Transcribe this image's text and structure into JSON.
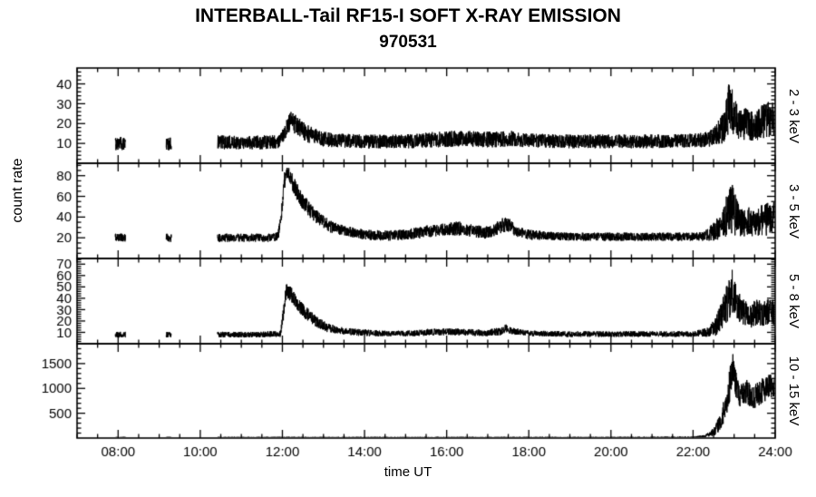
{
  "title": "INTERBALL-Tail RF15-I SOFT X-RAY EMISSION",
  "subtitle": "970531",
  "xlabel": "time UT",
  "ylabel": "count rate",
  "line_color": "#000000",
  "background_color": "#ffffff",
  "chart_data": {
    "type": "line",
    "x_range": [
      7,
      24
    ],
    "x_major_ticks": [
      8,
      10,
      12,
      14,
      16,
      18,
      20,
      22,
      24
    ],
    "x_tick_labels": [
      "08:00",
      "10:00",
      "12:00",
      "14:00",
      "16:00",
      "18:00",
      "20:00",
      "22:00",
      "24:00"
    ],
    "x_minor_step": 0.5,
    "data_segments": [
      [
        7.93,
        8.18
      ],
      [
        9.17,
        9.3
      ],
      [
        10.42,
        24.0
      ]
    ],
    "panels": [
      {
        "label": "2 - 3 keV",
        "ylim": [
          0,
          48
        ],
        "y_major_ticks": [
          10,
          20,
          30,
          40
        ],
        "y_minor_step": 2,
        "envelope": [
          [
            7.93,
            10,
            3.5
          ],
          [
            8.18,
            10,
            3.5
          ],
          [
            9.17,
            10,
            3.5
          ],
          [
            9.3,
            10,
            3.5
          ],
          [
            10.42,
            10.5,
            3.5
          ],
          [
            11.5,
            10.5,
            3.5
          ],
          [
            11.95,
            11,
            3.5
          ],
          [
            12.05,
            16,
            4
          ],
          [
            12.2,
            21,
            5
          ],
          [
            12.35,
            19,
            5
          ],
          [
            12.6,
            15,
            4.5
          ],
          [
            12.9,
            12.5,
            4
          ],
          [
            13.3,
            11.5,
            3.5
          ],
          [
            14,
            11,
            3.5
          ],
          [
            15,
            11,
            3.5
          ],
          [
            15.8,
            12,
            4
          ],
          [
            16.3,
            12.5,
            4
          ],
          [
            16.8,
            12,
            4
          ],
          [
            17.3,
            12,
            4
          ],
          [
            17.6,
            12.5,
            4
          ],
          [
            18,
            11.5,
            3.5
          ],
          [
            19,
            11,
            3.5
          ],
          [
            20,
            11,
            3.5
          ],
          [
            21,
            11,
            3.5
          ],
          [
            22,
            11.5,
            3.5
          ],
          [
            22.4,
            12,
            4
          ],
          [
            22.6,
            15,
            6
          ],
          [
            22.75,
            18,
            8
          ],
          [
            22.9,
            30,
            14
          ],
          [
            23,
            24,
            10
          ],
          [
            23.15,
            19,
            8
          ],
          [
            23.3,
            20,
            8
          ],
          [
            23.5,
            18,
            7
          ],
          [
            23.7,
            21,
            9
          ],
          [
            23.85,
            22,
            9
          ],
          [
            24,
            23,
            9
          ]
        ]
      },
      {
        "label": "3 - 5 keV",
        "ylim": [
          0,
          92
        ],
        "y_major_ticks": [
          20,
          40,
          60,
          80
        ],
        "y_minor_step": 5,
        "envelope": [
          [
            7.93,
            20,
            4
          ],
          [
            8.18,
            20,
            4
          ],
          [
            9.17,
            20,
            4
          ],
          [
            9.3,
            20,
            4
          ],
          [
            10.42,
            20,
            4
          ],
          [
            11,
            20,
            4
          ],
          [
            11.7,
            20,
            4
          ],
          [
            11.9,
            22,
            5
          ],
          [
            11.98,
            45,
            8
          ],
          [
            12.05,
            75,
            9
          ],
          [
            12.12,
            83,
            6
          ],
          [
            12.2,
            78,
            8
          ],
          [
            12.35,
            65,
            9
          ],
          [
            12.5,
            55,
            8
          ],
          [
            12.7,
            45,
            7
          ],
          [
            12.9,
            38,
            6
          ],
          [
            13.2,
            30,
            6
          ],
          [
            13.6,
            26,
            5
          ],
          [
            14,
            23,
            5
          ],
          [
            14.5,
            22,
            5
          ],
          [
            15,
            23,
            5
          ],
          [
            15.5,
            26,
            6
          ],
          [
            16,
            28,
            6
          ],
          [
            16.3,
            29,
            7
          ],
          [
            16.6,
            27,
            6
          ],
          [
            16.9,
            25,
            6
          ],
          [
            17.1,
            26,
            6
          ],
          [
            17.35,
            32,
            7
          ],
          [
            17.5,
            33,
            7
          ],
          [
            17.7,
            26,
            5
          ],
          [
            18,
            23,
            5
          ],
          [
            18.5,
            22,
            4
          ],
          [
            19,
            21,
            4
          ],
          [
            20,
            21,
            4
          ],
          [
            21,
            21,
            4
          ],
          [
            22,
            21,
            4
          ],
          [
            22.3,
            22,
            5
          ],
          [
            22.5,
            26,
            9
          ],
          [
            22.7,
            33,
            14
          ],
          [
            22.85,
            44,
            22
          ],
          [
            22.95,
            50,
            28
          ],
          [
            23.05,
            40,
            18
          ],
          [
            23.2,
            34,
            13
          ],
          [
            23.35,
            36,
            14
          ],
          [
            23.5,
            33,
            12
          ],
          [
            23.65,
            36,
            15
          ],
          [
            23.8,
            38,
            16
          ],
          [
            24,
            40,
            16
          ]
        ]
      },
      {
        "label": "5 - 8 keV",
        "ylim": [
          0,
          75
        ],
        "y_major_ticks": [
          10,
          20,
          30,
          40,
          50,
          60,
          70
        ],
        "y_minor_step": 2,
        "envelope": [
          [
            7.93,
            8,
            2.5
          ],
          [
            8.18,
            8,
            2.5
          ],
          [
            9.17,
            8,
            2.5
          ],
          [
            9.3,
            8,
            2.5
          ],
          [
            10.42,
            8,
            2.5
          ],
          [
            11.5,
            8,
            2.5
          ],
          [
            11.95,
            9,
            3
          ],
          [
            12.02,
            25,
            6
          ],
          [
            12.1,
            48,
            7
          ],
          [
            12.2,
            44,
            7
          ],
          [
            12.35,
            36,
            6
          ],
          [
            12.55,
            28,
            6
          ],
          [
            12.8,
            20,
            5
          ],
          [
            13.1,
            14,
            4
          ],
          [
            13.5,
            11,
            3
          ],
          [
            14,
            9.5,
            3
          ],
          [
            14.5,
            9,
            2.5
          ],
          [
            15,
            9,
            2.5
          ],
          [
            15.5,
            10,
            3
          ],
          [
            16,
            10.5,
            3
          ],
          [
            16.5,
            10,
            3
          ],
          [
            17,
            9.5,
            3
          ],
          [
            17.3,
            11,
            3.5
          ],
          [
            17.45,
            13,
            4
          ],
          [
            17.6,
            11,
            3
          ],
          [
            18,
            9,
            2.5
          ],
          [
            19,
            8.5,
            2.5
          ],
          [
            20,
            8.5,
            2.5
          ],
          [
            21,
            8.5,
            2.5
          ],
          [
            22,
            8.5,
            2.5
          ],
          [
            22.35,
            10,
            4
          ],
          [
            22.55,
            15,
            8
          ],
          [
            22.7,
            25,
            13
          ],
          [
            22.85,
            38,
            18
          ],
          [
            22.95,
            48,
            22
          ],
          [
            23.05,
            35,
            15
          ],
          [
            23.2,
            28,
            12
          ],
          [
            23.4,
            24,
            10
          ],
          [
            23.55,
            28,
            12
          ],
          [
            23.7,
            26,
            11
          ],
          [
            23.85,
            28,
            12
          ],
          [
            24,
            28,
            12
          ]
        ]
      },
      {
        "label": "10 - 15 keV",
        "ylim": [
          0,
          1900
        ],
        "y_major_ticks": [
          500,
          1000,
          1500
        ],
        "y_minor_step": 100,
        "envelope": [
          [
            7.93,
            15,
            8
          ],
          [
            8.18,
            15,
            8
          ],
          [
            9.17,
            15,
            8
          ],
          [
            9.3,
            15,
            8
          ],
          [
            10.42,
            15,
            8
          ],
          [
            20,
            15,
            8
          ],
          [
            22,
            18,
            10
          ],
          [
            22.3,
            40,
            25
          ],
          [
            22.5,
            120,
            80
          ],
          [
            22.65,
            300,
            160
          ],
          [
            22.8,
            650,
            260
          ],
          [
            22.9,
            1100,
            350
          ],
          [
            22.97,
            1500,
            330
          ],
          [
            23.05,
            1050,
            280
          ],
          [
            23.15,
            850,
            230
          ],
          [
            23.3,
            950,
            260
          ],
          [
            23.45,
            800,
            220
          ],
          [
            23.6,
            900,
            250
          ],
          [
            23.75,
            1000,
            260
          ],
          [
            23.9,
            1050,
            260
          ],
          [
            24,
            1100,
            260
          ]
        ]
      }
    ]
  }
}
